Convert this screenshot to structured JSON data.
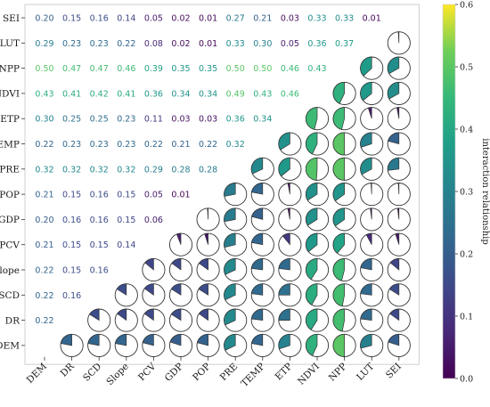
{
  "chart_data": {
    "type": "heatmap",
    "variables": [
      "DEM",
      "DR",
      "SCD",
      "Slope",
      "PCV",
      "GDP",
      "POP",
      "PRE",
      "TEMP",
      "ETP",
      "NDVI",
      "NPP",
      "LUT",
      "SEI"
    ],
    "y_order_top_to_bottom": [
      "SEI",
      "LUT",
      "NPP",
      "NDVI",
      "ETP",
      "TEMP",
      "PRE",
      "POP",
      "GDP",
      "PCV",
      "Slope",
      "SCD",
      "DR",
      "DEM"
    ],
    "values": {
      "SEI": [
        0.2,
        0.15,
        0.16,
        0.14,
        0.05,
        0.02,
        0.01,
        0.27,
        0.21,
        0.03,
        0.33,
        0.33,
        0.01
      ],
      "LUT": [
        0.29,
        0.23,
        0.23,
        0.22,
        0.08,
        0.02,
        0.01,
        0.33,
        0.3,
        0.05,
        0.36,
        0.37
      ],
      "NPP": [
        0.5,
        0.47,
        0.47,
        0.46,
        0.39,
        0.35,
        0.35,
        0.5,
        0.5,
        0.46,
        0.43
      ],
      "NDVI": [
        0.43,
        0.41,
        0.42,
        0.41,
        0.36,
        0.34,
        0.34,
        0.49,
        0.43,
        0.46
      ],
      "ETP": [
        0.3,
        0.25,
        0.25,
        0.23,
        0.11,
        0.03,
        0.03,
        0.36,
        0.34
      ],
      "TEMP": [
        0.22,
        0.23,
        0.23,
        0.23,
        0.22,
        0.21,
        0.22,
        0.32
      ],
      "PRE": [
        0.32,
        0.32,
        0.32,
        0.32,
        0.29,
        0.28,
        0.28
      ],
      "POP": [
        0.21,
        0.15,
        0.16,
        0.15,
        0.05,
        0.01
      ],
      "GDP": [
        0.2,
        0.16,
        0.16,
        0.15,
        0.06
      ],
      "PCV": [
        0.21,
        0.15,
        0.15,
        0.14
      ],
      "Slope": [
        0.22,
        0.15,
        0.16
      ],
      "SCD": [
        0.22,
        0.16
      ],
      "DR": [
        0.22
      ],
      "DEM": []
    },
    "colorbar": {
      "label": "interaction relationship",
      "min": 0.0,
      "max": 0.6,
      "ticks": [
        "0.0",
        "0.1",
        "0.2",
        "0.3",
        "0.4",
        "0.5",
        "0.6"
      ],
      "colormap": "viridis"
    },
    "pie_fill_color": "matches cell value on colormap",
    "pie_empty_color": "#ffffff"
  }
}
